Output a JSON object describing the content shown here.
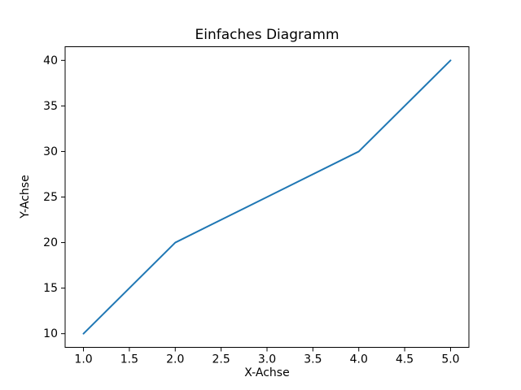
{
  "chart_data": {
    "type": "line",
    "title": "Einfaches Diagramm",
    "xlabel": "X-Achse",
    "ylabel": "Y-Achse",
    "x": [
      1,
      2,
      3,
      4,
      5
    ],
    "y": [
      10,
      20,
      25,
      30,
      40
    ],
    "xlim": [
      0.8,
      5.2
    ],
    "ylim": [
      8.5,
      41.5
    ],
    "xticks": {
      "values": [
        1.0,
        1.5,
        2.0,
        2.5,
        3.0,
        3.5,
        4.0,
        4.5,
        5.0
      ],
      "labels": [
        "1.0",
        "1.5",
        "2.0",
        "2.5",
        "3.0",
        "3.5",
        "4.0",
        "4.5",
        "5.0"
      ]
    },
    "yticks": {
      "values": [
        10,
        15,
        20,
        25,
        30,
        35,
        40
      ],
      "labels": [
        "10",
        "15",
        "20",
        "25",
        "30",
        "35",
        "40"
      ]
    },
    "line_color": "#1f77b4",
    "spine_color": "#000000",
    "text_color": "#000000",
    "background": "#ffffff",
    "grid": false,
    "legend": null
  }
}
